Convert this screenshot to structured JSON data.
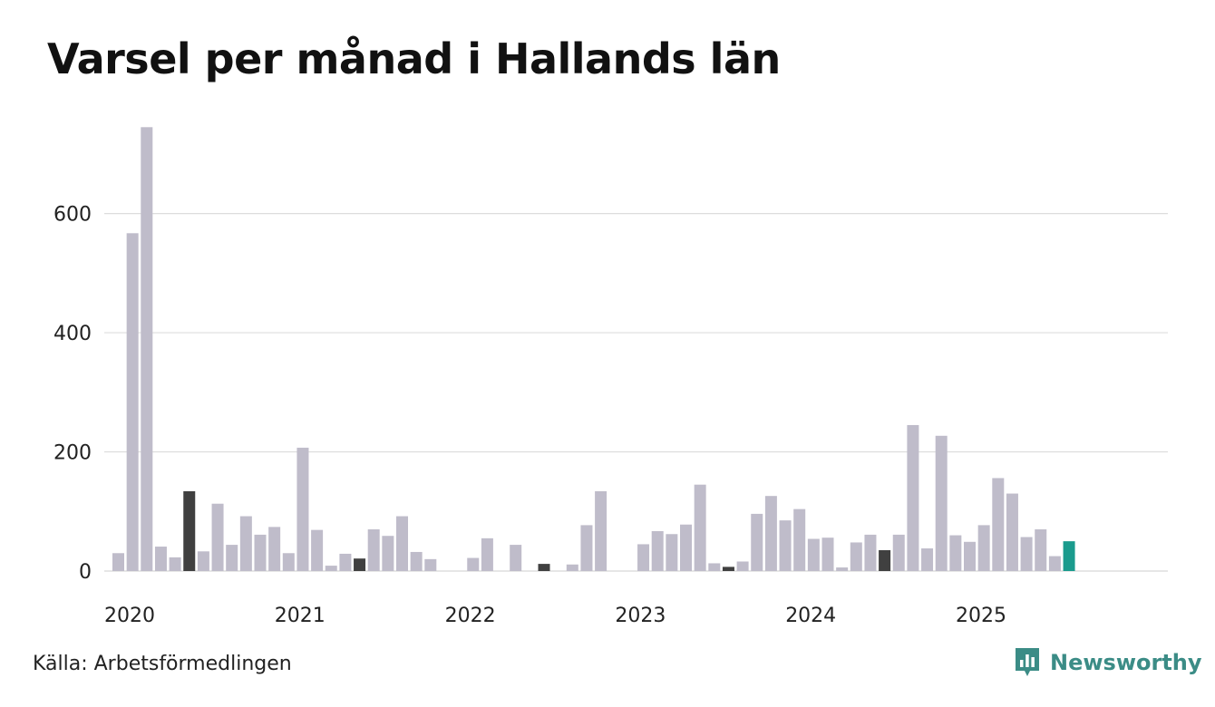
{
  "title": "Varsel per månad i Hallands län",
  "source": "Källa: Arbetsförmedlingen",
  "brand": {
    "name": "Newsworthy",
    "icon": "newsworthy-logo-icon",
    "color": "#3b8c86"
  },
  "colors": {
    "default_bar": "#bfbcca",
    "highlight_bar": "#404040",
    "current_bar": "#1a9b8d",
    "gridline": "#dddddd"
  },
  "chart_data": {
    "type": "bar",
    "title": "Varsel per månad i Hallands län",
    "xlabel": "",
    "ylabel": "",
    "ylim": [
      0,
      750
    ],
    "yticks": [
      0,
      200,
      400,
      600
    ],
    "grid": true,
    "x_tick_labels": [
      "2020",
      "2021",
      "2022",
      "2023",
      "2024",
      "2025"
    ],
    "start_month": "2020-01",
    "series": [
      {
        "values": [
          30,
          567,
          745,
          41,
          23,
          134,
          33,
          113,
          44,
          92,
          61,
          74,
          30,
          207,
          69,
          9,
          29,
          21,
          70,
          59,
          92,
          32,
          20,
          null,
          null,
          22,
          55,
          null,
          44,
          null,
          12,
          null,
          11,
          77,
          134,
          null,
          null,
          45,
          67,
          62,
          78,
          145,
          13,
          7,
          16,
          96,
          126,
          85,
          104,
          54,
          56,
          6,
          48,
          61,
          35,
          61,
          245,
          38,
          227,
          60,
          49,
          77,
          156,
          130,
          57,
          70,
          25,
          50
        ]
      }
    ],
    "highlight_months": [
      "2020-06",
      "2021-06",
      "2022-07",
      "2023-08",
      "2024-07"
    ],
    "current_month": "2025-08"
  }
}
